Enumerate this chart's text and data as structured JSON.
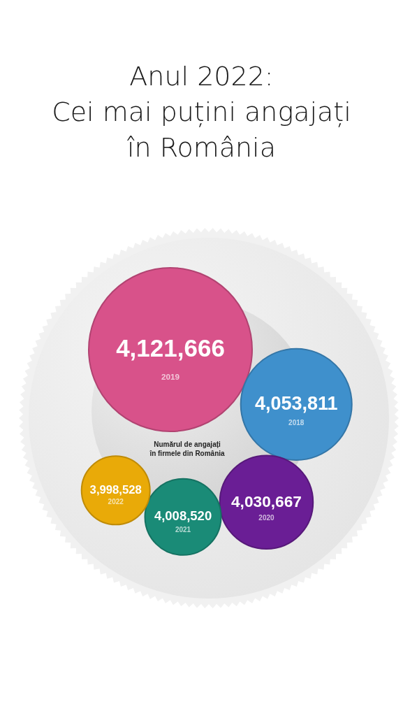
{
  "chart_data": {
    "type": "other",
    "title": "Anul 2022:\nCei mai puțini angajați\nîn România",
    "categories": [
      "2019",
      "2018",
      "2020",
      "2021",
      "2022"
    ],
    "values": [
      4121666,
      4053811,
      4030667,
      4008520,
      3998528
    ],
    "value_labels": [
      "4,121,666",
      "4,053,811",
      "4,030,667",
      "4,008,520",
      "3,998,528"
    ],
    "colors": [
      "#d8528a",
      "#3f90cc",
      "#6a1e95",
      "#1a8b77",
      "#e9aa08"
    ],
    "annotations": [
      "Numărul de angajați\nîn firmele din România"
    ]
  }
}
